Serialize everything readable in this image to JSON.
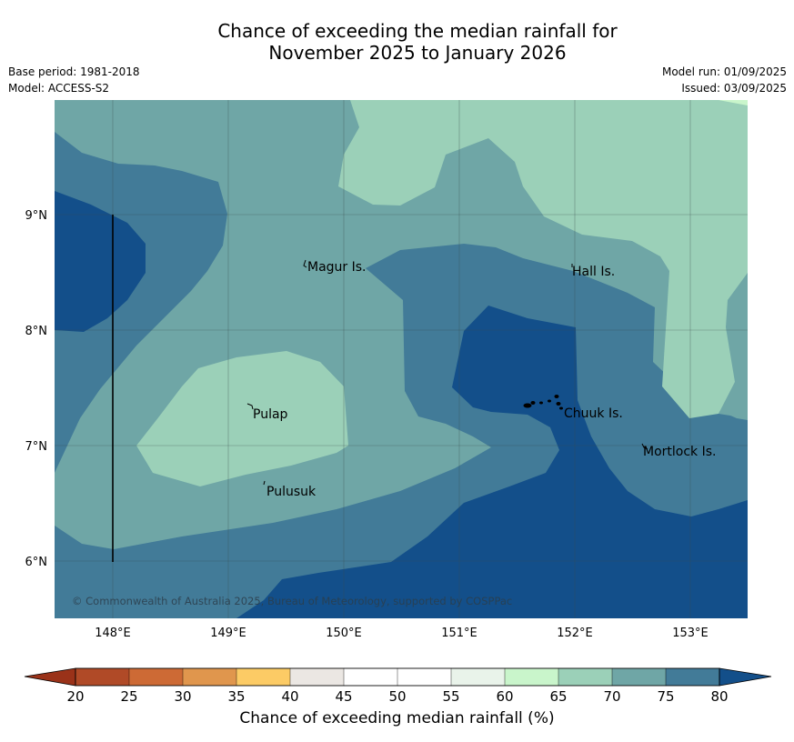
{
  "title": {
    "line1": "Chance of exceeding the median rainfall for",
    "line2": "November 2025 to January 2026"
  },
  "meta_left": {
    "base_period": "Base period: 1981-2018",
    "model": "Model: ACCESS-S2"
  },
  "meta_right": {
    "model_run": "Model run: 01/09/2025",
    "issued": "Issued: 03/09/2025"
  },
  "map": {
    "copyright": "© Commonwealth of Australia 2025, Bureau of Meteorology, supported by COSPPac",
    "lat_labels": [
      "9°N",
      "8°N",
      "7°N",
      "6°N"
    ],
    "lon_labels": [
      "148°E",
      "149°E",
      "150°E",
      "151°E",
      "152°E",
      "153°E"
    ],
    "places": [
      "Magur Is.",
      "Hall Is.",
      "Pulap",
      "Chuuk Is.",
      "Mortlock Is.",
      "Pulusuk"
    ],
    "zone_colors": {
      "60_65": "#c9f5cb",
      "65_70": "#9bd0b8",
      "70_75": "#6fa6a6",
      "75_80": "#427b98",
      "80_plus": "#134f8a"
    }
  },
  "colorbar": {
    "label": "Chance of exceeding median rainfall (%)",
    "ticks": [
      "20",
      "25",
      "30",
      "35",
      "40",
      "45",
      "50",
      "55",
      "60",
      "65",
      "70",
      "75",
      "80"
    ],
    "colors": [
      "#b04a27",
      "#cd6a35",
      "#e0964d",
      "#fccb65",
      "#ebe7e3",
      "#ffffff",
      "#ffffff",
      "#e9f3ea",
      "#c9f5cb",
      "#9bd0b8",
      "#6fa6a6",
      "#427b98"
    ],
    "under_color": "#9a3219",
    "over_color": "#134f8a"
  }
}
